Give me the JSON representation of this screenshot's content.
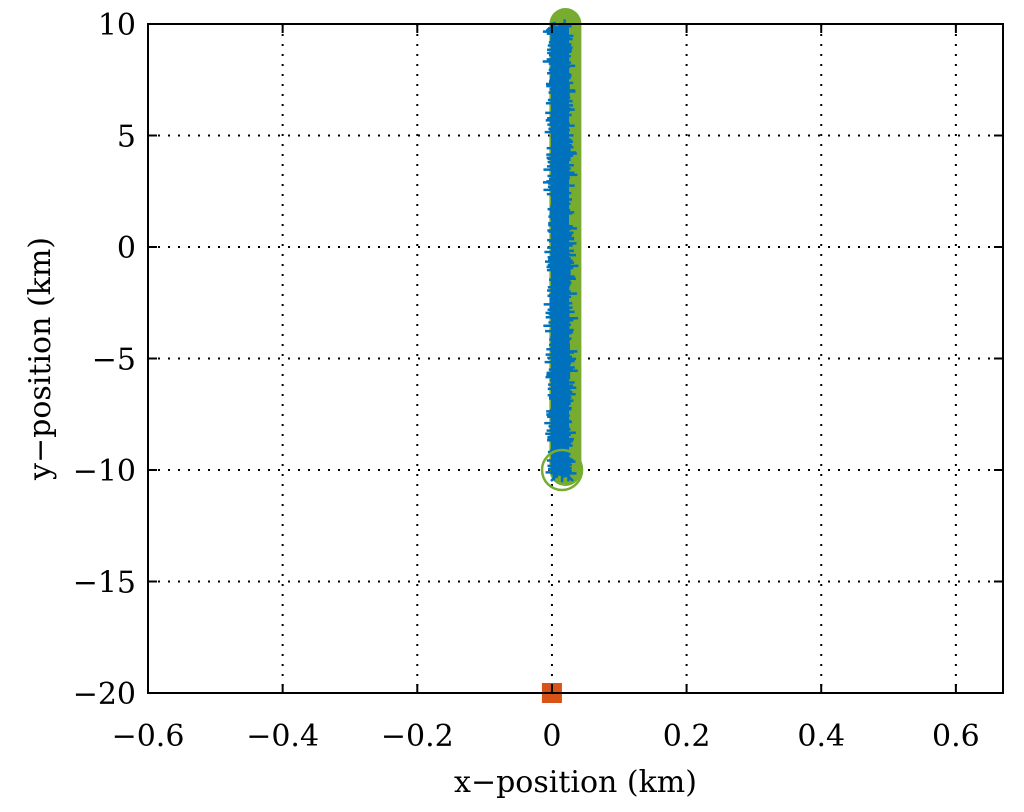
{
  "chart_data": {
    "type": "scatter",
    "title": "",
    "xlabel": "x−position (km)",
    "ylabel": "y−position (km)",
    "xlim": [
      -0.6,
      0.67
    ],
    "ylim": [
      -20,
      10
    ],
    "xticks": [
      -0.6,
      -0.4,
      -0.2,
      0,
      0.2,
      0.4,
      0.6
    ],
    "xtick_labels": [
      "−0.6",
      "−0.4",
      "−0.2",
      "0",
      "0.2",
      "0.4",
      "0.6"
    ],
    "yticks": [
      -20,
      -15,
      -10,
      -5,
      0,
      5,
      10
    ],
    "ytick_labels": [
      "−20",
      "−15",
      "−10",
      "−5",
      "0",
      "5",
      "10"
    ],
    "grid": true,
    "colors": {
      "true_path": "#77AC30",
      "estimate": "#0072BD",
      "sensor": "#D95319"
    },
    "series": [
      {
        "kind": "true-trajectory",
        "x": [
          0.02,
          0.02
        ],
        "y": [
          -10,
          10
        ]
      },
      {
        "kind": "estimated-trajectory",
        "x_center": 0.012,
        "x_spread": 0.015,
        "y": [
          -10.2,
          9.9
        ]
      },
      {
        "kind": "start-marker",
        "x": 0.015,
        "y": -10
      },
      {
        "kind": "sensor-marker",
        "x": 0,
        "y": -20
      }
    ]
  }
}
